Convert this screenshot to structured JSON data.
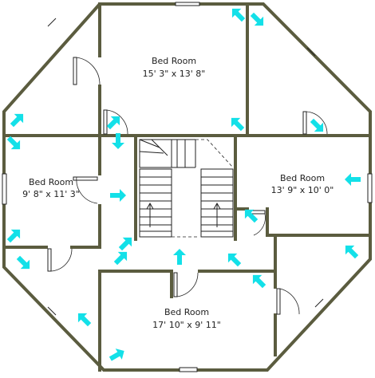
{
  "rooms": [
    {
      "name": "Bed Room",
      "dims": "15' 3\" x 13' 8\""
    },
    {
      "name": "Bed Room",
      "dims": "9' 8\" x 11' 3\""
    },
    {
      "name": "Bed Room",
      "dims": "13' 9\" x 10' 0\""
    },
    {
      "name": "Bed Room",
      "dims": "17' 10\" x 9' 11\""
    }
  ],
  "colors": {
    "wall": "#5b5c3f",
    "arrow": "#13e0e8"
  },
  "icons": [
    "direction-arrow-icon",
    "door-icon",
    "window-icon",
    "staircase-icon"
  ]
}
